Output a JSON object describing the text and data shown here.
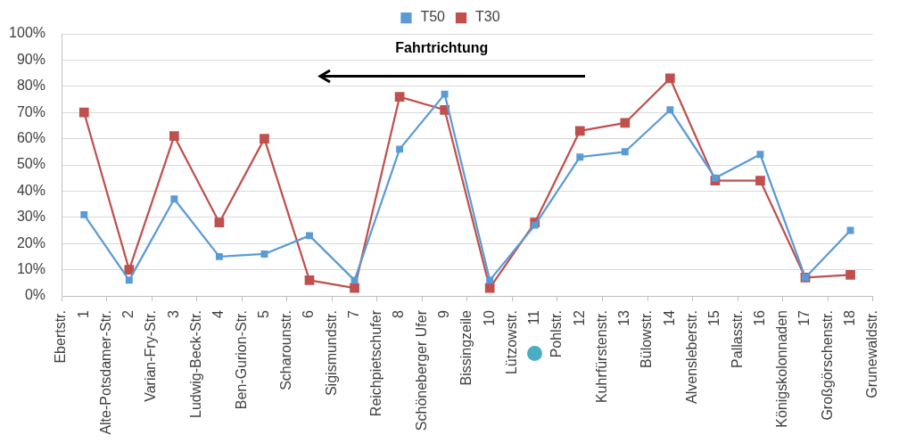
{
  "chart_data": {
    "type": "line",
    "annotations": [
      "Fahrtrichtung"
    ],
    "x": [
      1,
      2,
      3,
      4,
      5,
      6,
      7,
      8,
      9,
      10,
      11,
      12,
      13,
      14,
      15,
      16,
      17,
      18
    ],
    "xlim": [
      0.5,
      18.5
    ],
    "xticks": [
      {
        "value": 0.5,
        "label": "Ebertstr."
      },
      1,
      {
        "value": 1.5,
        "label": "Alte-Potsdamer-Str."
      },
      2,
      {
        "value": 2.5,
        "label": "Varian-Fry-Str."
      },
      3,
      {
        "value": 3.5,
        "label": "Ludwig-Beck-Str."
      },
      4,
      {
        "value": 4.5,
        "label": "Ben-Gurion-Str."
      },
      5,
      {
        "value": 5.5,
        "label": "Scharounstr."
      },
      6,
      {
        "value": 6.5,
        "label": "Sigismundstr."
      },
      7,
      {
        "value": 7.5,
        "label": "Reichpietschufer"
      },
      8,
      {
        "value": 8.5,
        "label": "Schöneberger Ufer"
      },
      9,
      {
        "value": 9.5,
        "label": "Bissingzeile"
      },
      10,
      {
        "value": 10.5,
        "label": "Lützowstr."
      },
      11,
      {
        "value": 11.5,
        "label": "Pohlstr."
      },
      12,
      {
        "value": 12.5,
        "label": "Kuhrfürstenstr."
      },
      13,
      {
        "value": 13.5,
        "label": "Bülowstr."
      },
      14,
      {
        "value": 14.5,
        "label": "Alvensleberstr."
      },
      15,
      {
        "value": 15.5,
        "label": "Pallasstr."
      },
      16,
      {
        "value": 16.5,
        "label": "Königskolonnaden"
      },
      17,
      {
        "value": 17.5,
        "label": "Großgörschenstr."
      },
      18,
      {
        "value": 18.5,
        "label": "Grunewaldstr."
      }
    ],
    "ylim": [
      0,
      100
    ],
    "yticks": [
      {
        "value": 0,
        "label": "0%"
      },
      {
        "value": 10,
        "label": "10%"
      },
      {
        "value": 20,
        "label": "20%"
      },
      {
        "value": 30,
        "label": "30%"
      },
      {
        "value": 40,
        "label": "40%"
      },
      {
        "value": 50,
        "label": "50%"
      },
      {
        "value": 60,
        "label": "60%"
      },
      {
        "value": 70,
        "label": "70%"
      },
      {
        "value": 80,
        "label": "80%"
      },
      {
        "value": 90,
        "label": "90%"
      },
      {
        "value": 100,
        "label": "100%"
      }
    ],
    "series": [
      {
        "name": "T50",
        "color": "#5b9bd5",
        "values": [
          31,
          6,
          37,
          15,
          16,
          23,
          6,
          56,
          77,
          6,
          27,
          53,
          55,
          71,
          45,
          54,
          7,
          25
        ]
      },
      {
        "name": "T30",
        "color": "#c0504d",
        "values": [
          70,
          10,
          61,
          28,
          60,
          6,
          3,
          76,
          71,
          3,
          28,
          63,
          66,
          83,
          44,
          44,
          7,
          8
        ]
      }
    ],
    "grid": "y",
    "legend": "top",
    "marker": "square",
    "line_style": "solid"
  }
}
